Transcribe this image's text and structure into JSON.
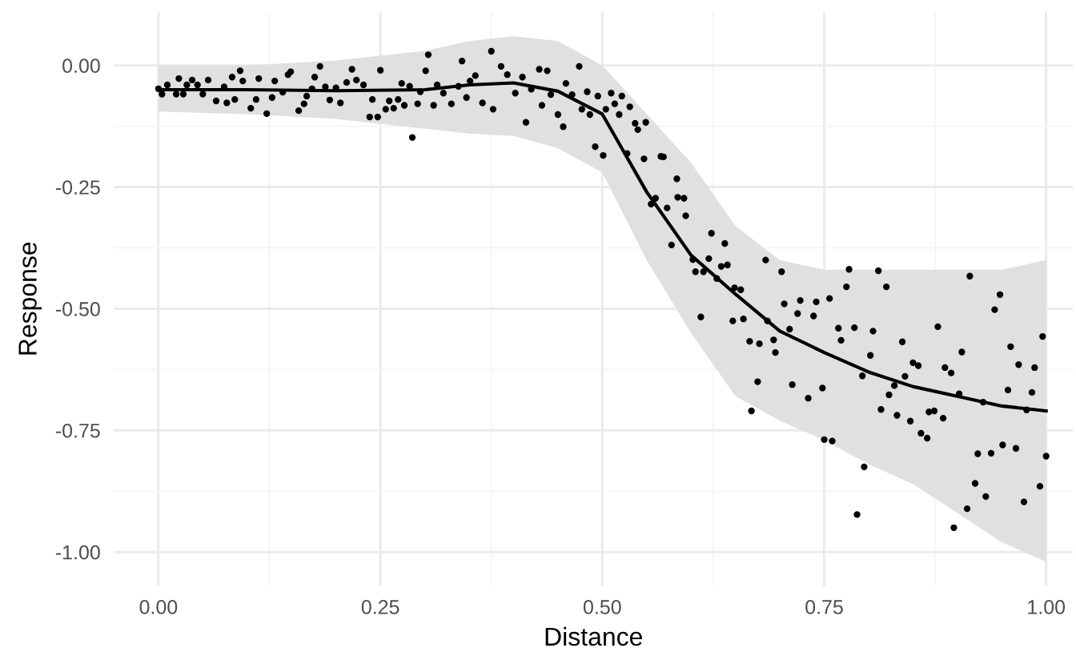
{
  "chart_data": {
    "type": "scatter",
    "xlabel": "Distance",
    "ylabel": "Response",
    "xlim": [
      -0.05,
      1.03
    ],
    "ylim": [
      -1.07,
      0.11
    ],
    "xticks": [
      {
        "value": 0,
        "label": "0.00"
      },
      {
        "value": 0.25,
        "label": "0.25"
      },
      {
        "value": 0.5,
        "label": "0.50"
      },
      {
        "value": 0.75,
        "label": "0.75"
      },
      {
        "value": 1,
        "label": "1.00"
      }
    ],
    "yticks": [
      {
        "value": -1,
        "label": "-1.00"
      },
      {
        "value": -0.75,
        "label": "-0.75"
      },
      {
        "value": -0.5,
        "label": "-0.50"
      },
      {
        "value": -0.25,
        "label": "-0.25"
      },
      {
        "value": 0,
        "label": "0.00"
      }
    ],
    "grid": true,
    "marker": "circle",
    "series": [
      {
        "color": "#000000",
        "x": [
          0,
          0.004,
          0.01,
          0.02,
          0.023,
          0.028,
          0.032,
          0.038,
          0.044,
          0.05,
          0.056,
          0.065,
          0.074,
          0.077,
          0.083,
          0.086,
          0.092,
          0.095,
          0.104,
          0.11,
          0.113,
          0.122,
          0.128,
          0.131,
          0.14,
          0.146,
          0.149,
          0.158,
          0.164,
          0.167,
          0.173,
          0.176,
          0.182,
          0.188,
          0.193,
          0.2,
          0.205,
          0.212,
          0.218,
          0.223,
          0.231,
          0.238,
          0.241,
          0.247,
          0.25,
          0.256,
          0.26,
          0.265,
          0.27,
          0.274,
          0.277,
          0.283,
          0.286,
          0.292,
          0.295,
          0.301,
          0.304,
          0.31,
          0.314,
          0.321,
          0.33,
          0.338,
          0.342,
          0.347,
          0.351,
          0.357,
          0.365,
          0.375,
          0.377,
          0.386,
          0.393,
          0.402,
          0.41,
          0.414,
          0.42,
          0.429,
          0.432,
          0.438,
          0.442,
          0.45,
          0.456,
          0.459,
          0.466,
          0.474,
          0.477,
          0.483,
          0.486,
          0.492,
          0.495,
          0.501,
          0.504,
          0.51,
          0.514,
          0.519,
          0.522,
          0.528,
          0.531,
          0.537,
          0.54,
          0.547,
          0.549,
          0.555,
          0.56,
          0.566,
          0.569,
          0.573,
          0.578,
          0.584,
          0.585,
          0.592,
          0.594,
          0.602,
          0.605,
          0.611,
          0.614,
          0.62,
          0.623,
          0.629,
          0.634,
          0.638,
          0.641,
          0.649,
          0.656,
          0.647,
          0.659,
          0.666,
          0.677,
          0.675,
          0.668,
          0.684,
          0.686,
          0.693,
          0.695,
          0.702,
          0.705,
          0.711,
          0.714,
          0.72,
          0.723,
          0.732,
          0.738,
          0.741,
          0.748,
          0.75,
          0.759,
          0.756,
          0.766,
          0.769,
          0.775,
          0.778,
          0.784,
          0.787,
          0.795,
          0.793,
          0.811,
          0.82,
          0.805,
          0.802,
          0.814,
          0.823,
          0.829,
          0.832,
          0.838,
          0.841,
          0.847,
          0.85,
          0.856,
          0.859,
          0.866,
          0.868,
          0.874,
          0.878,
          0.884,
          0.886,
          0.893,
          0.896,
          0.902,
          0.905,
          0.911,
          0.914,
          0.92,
          0.923,
          0.929,
          0.932,
          0.938,
          0.942,
          0.948,
          0.951,
          0.957,
          0.96,
          0.966,
          0.969,
          0.975,
          0.978,
          0.984,
          0.987,
          0.993,
          0.996,
          1.0
        ],
        "values": [
          -0.048,
          -0.059,
          -0.04,
          -0.059,
          -0.027,
          -0.059,
          -0.04,
          -0.03,
          -0.04,
          -0.059,
          -0.03,
          -0.073,
          -0.044,
          -0.077,
          -0.024,
          -0.07,
          -0.011,
          -0.032,
          -0.088,
          -0.07,
          -0.027,
          -0.099,
          -0.066,
          -0.032,
          -0.055,
          -0.019,
          -0.013,
          -0.093,
          -0.079,
          -0.063,
          -0.048,
          -0.024,
          -0.002,
          -0.044,
          -0.071,
          -0.046,
          -0.077,
          -0.035,
          -0.008,
          -0.03,
          -0.04,
          -0.106,
          -0.07,
          -0.106,
          -0.01,
          -0.09,
          -0.073,
          -0.088,
          -0.07,
          -0.037,
          -0.082,
          -0.043,
          -0.148,
          -0.079,
          -0.054,
          -0.011,
          0.022,
          -0.082,
          -0.04,
          -0.057,
          -0.079,
          -0.043,
          0.009,
          -0.066,
          -0.032,
          -0.021,
          -0.077,
          0.029,
          -0.09,
          -0.002,
          -0.019,
          -0.057,
          -0.024,
          -0.117,
          -0.049,
          -0.008,
          -0.082,
          -0.011,
          -0.06,
          -0.101,
          -0.126,
          -0.037,
          -0.06,
          -0.002,
          -0.09,
          -0.054,
          -0.101,
          -0.167,
          -0.063,
          -0.185,
          -0.09,
          -0.057,
          -0.079,
          -0.101,
          -0.063,
          -0.181,
          -0.085,
          -0.119,
          -0.132,
          -0.192,
          -0.117,
          -0.285,
          -0.273,
          -0.187,
          -0.188,
          -0.293,
          -0.369,
          -0.233,
          -0.271,
          -0.273,
          -0.309,
          -0.399,
          -0.424,
          -0.517,
          -0.424,
          -0.397,
          -0.345,
          -0.438,
          -0.413,
          -0.366,
          -0.41,
          -0.457,
          -0.461,
          -0.525,
          -0.521,
          -0.567,
          -0.572,
          -0.65,
          -0.71,
          -0.4,
          -0.525,
          -0.564,
          -0.59,
          -0.424,
          -0.49,
          -0.542,
          -0.656,
          -0.51,
          -0.483,
          -0.684,
          -0.515,
          -0.486,
          -0.663,
          -0.769,
          -0.772,
          -0.479,
          -0.54,
          -0.565,
          -0.455,
          -0.419,
          -0.539,
          -0.923,
          -0.825,
          -0.638,
          -0.422,
          -0.455,
          -0.546,
          -0.596,
          -0.707,
          -0.677,
          -0.658,
          -0.719,
          -0.568,
          -0.639,
          -0.731,
          -0.611,
          -0.617,
          -0.756,
          -0.766,
          -0.712,
          -0.71,
          -0.537,
          -0.725,
          -0.621,
          -0.632,
          -0.95,
          -0.675,
          -0.589,
          -0.911,
          -0.433,
          -0.859,
          -0.798,
          -0.692,
          -0.886,
          -0.797,
          -0.502,
          -0.471,
          -0.78,
          -0.667,
          -0.578,
          -0.787,
          -0.615,
          -0.897,
          -0.708,
          -0.672,
          -0.621,
          -0.865,
          -0.557,
          -0.803
        ]
      },
      {
        "type": "line",
        "color": "#000000",
        "marker": "none",
        "line_style": "solid",
        "x": [
          0,
          0.1,
          0.2,
          0.3,
          0.35,
          0.4,
          0.45,
          0.5,
          0.55,
          0.6,
          0.65,
          0.7,
          0.75,
          0.8,
          0.85,
          0.9,
          0.95,
          1.0
        ],
        "values": [
          -0.05,
          -0.05,
          -0.052,
          -0.05,
          -0.04,
          -0.036,
          -0.053,
          -0.1,
          -0.26,
          -0.39,
          -0.47,
          -0.546,
          -0.59,
          -0.63,
          -0.66,
          -0.68,
          -0.7,
          -0.71
        ],
        "upper": [
          0.0,
          0.0,
          0.01,
          0.03,
          0.05,
          0.06,
          0.05,
          0.0,
          -0.1,
          -0.2,
          -0.33,
          -0.4,
          -0.42,
          -0.42,
          -0.42,
          -0.42,
          -0.42,
          -0.4
        ],
        "lower": [
          -0.095,
          -0.1,
          -0.11,
          -0.13,
          -0.14,
          -0.145,
          -0.17,
          -0.22,
          -0.4,
          -0.55,
          -0.68,
          -0.73,
          -0.77,
          -0.82,
          -0.86,
          -0.92,
          -0.98,
          -1.02
        ]
      }
    ]
  }
}
